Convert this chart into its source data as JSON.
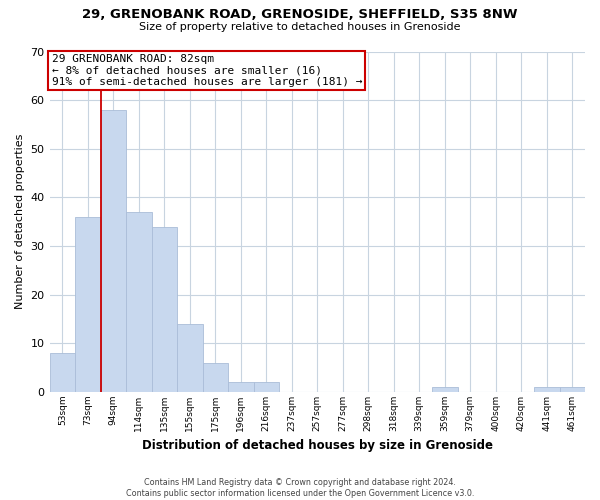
{
  "title1": "29, GRENOBANK ROAD, GRENOSIDE, SHEFFIELD, S35 8NW",
  "title2": "Size of property relative to detached houses in Grenoside",
  "xlabel": "Distribution of detached houses by size in Grenoside",
  "ylabel": "Number of detached properties",
  "bar_labels": [
    "53sqm",
    "73sqm",
    "94sqm",
    "114sqm",
    "135sqm",
    "155sqm",
    "175sqm",
    "196sqm",
    "216sqm",
    "237sqm",
    "257sqm",
    "277sqm",
    "298sqm",
    "318sqm",
    "339sqm",
    "359sqm",
    "379sqm",
    "400sqm",
    "420sqm",
    "441sqm",
    "461sqm"
  ],
  "bar_heights": [
    8,
    36,
    58,
    37,
    34,
    14,
    6,
    2,
    2,
    0,
    0,
    0,
    0,
    0,
    0,
    1,
    0,
    0,
    0,
    1,
    1
  ],
  "bar_color": "#c8d8ee",
  "bar_edge_color": "#aabdd8",
  "annotation_text_line1": "29 GRENOBANK ROAD: 82sqm",
  "annotation_text_line2": "← 8% of detached houses are smaller (16)",
  "annotation_text_line3": "91% of semi-detached houses are larger (181) →",
  "annotation_box_color": "#ffffff",
  "annotation_box_edge": "#cc0000",
  "vline_color": "#cc0000",
  "ylim": [
    0,
    70
  ],
  "yticks": [
    0,
    10,
    20,
    30,
    40,
    50,
    60,
    70
  ],
  "footer_line1": "Contains HM Land Registry data © Crown copyright and database right 2024.",
  "footer_line2": "Contains public sector information licensed under the Open Government Licence v3.0.",
  "background_color": "#ffffff",
  "grid_color": "#c8d4e0"
}
